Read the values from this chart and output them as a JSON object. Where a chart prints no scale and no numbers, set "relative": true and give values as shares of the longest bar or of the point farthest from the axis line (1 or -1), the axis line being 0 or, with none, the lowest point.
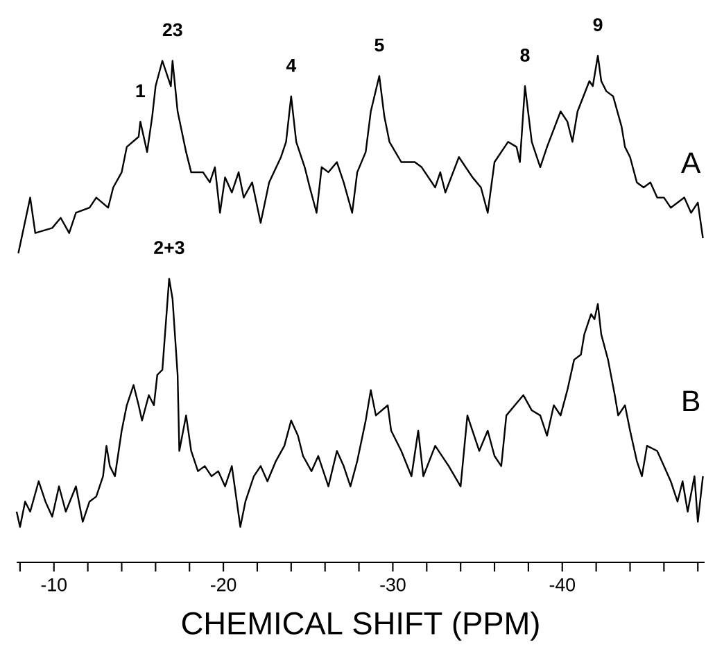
{
  "chart_data": {
    "type": "line",
    "relative": true,
    "xlabel": "CHEMICAL SHIFT   (PPM)",
    "xlim": [
      -7.8,
      -48.4
    ],
    "xticks": [
      {
        "value": -8,
        "label": null
      },
      -10,
      {
        "value": -12,
        "label": null
      },
      {
        "value": -14,
        "label": null
      },
      {
        "value": -16,
        "label": null
      },
      {
        "value": -18,
        "label": null
      },
      -20,
      {
        "value": -22,
        "label": null
      },
      {
        "value": -24,
        "label": null
      },
      {
        "value": -26,
        "label": null
      },
      {
        "value": -28,
        "label": null
      },
      -30,
      {
        "value": -32,
        "label": null
      },
      {
        "value": -34,
        "label": null
      },
      {
        "value": -36,
        "label": null
      },
      {
        "value": -38,
        "label": null
      },
      -40,
      {
        "value": -42,
        "label": null
      },
      {
        "value": -44,
        "label": null
      },
      {
        "value": -46,
        "label": null
      },
      {
        "value": -48,
        "label": null
      }
    ],
    "legend": false,
    "grid": false,
    "marker": "none",
    "line_style": "solid",
    "series": [
      {
        "name": "A",
        "color": "#000000",
        "x": [
          -7.9,
          -8.6,
          -8.9,
          -9.9,
          -10.4,
          -10.9,
          -11.3,
          -12.1,
          -12.5,
          -13.2,
          -13.5,
          -14.0,
          -14.3,
          -15.0,
          -15.1,
          -15.5,
          -15.8,
          -16.0,
          -16.4,
          -16.9,
          -17.0,
          -17.3,
          -17.8,
          -18.1,
          -18.8,
          -19.2,
          -19.5,
          -19.8,
          -20.1,
          -20.5,
          -20.9,
          -21.2,
          -21.7,
          -22.2,
          -22.7,
          -23.4,
          -23.7,
          -24.0,
          -24.3,
          -24.8,
          -25.1,
          -25.5,
          -25.8,
          -26.2,
          -26.7,
          -27.1,
          -27.6,
          -27.9,
          -28.4,
          -28.7,
          -29.2,
          -29.5,
          -29.8,
          -30.5,
          -31.3,
          -31.7,
          -32.5,
          -32.8,
          -33.1,
          -33.9,
          -34.7,
          -35.2,
          -35.6,
          -36.0,
          -36.8,
          -37.3,
          -37.5,
          -37.8,
          -38.2,
          -38.7,
          -39.1,
          -39.9,
          -40.3,
          -40.6,
          -40.9,
          -41.6,
          -41.8,
          -42.1,
          -42.3,
          -42.6,
          -43.0,
          -43.5,
          -43.7,
          -44.0,
          -44.4,
          -44.8,
          -45.2,
          -45.6,
          -46.0,
          -46.4,
          -46.8,
          -47.2,
          -47.6,
          -48.0,
          -48.3
        ],
        "values": [
          0.61,
          0.72,
          0.65,
          0.66,
          0.68,
          0.65,
          0.69,
          0.7,
          0.72,
          0.7,
          0.74,
          0.77,
          0.82,
          0.84,
          0.87,
          0.81,
          0.88,
          0.94,
          0.99,
          0.94,
          0.99,
          0.89,
          0.81,
          0.77,
          0.77,
          0.75,
          0.78,
          0.69,
          0.76,
          0.73,
          0.77,
          0.72,
          0.75,
          0.67,
          0.75,
          0.8,
          0.83,
          0.92,
          0.83,
          0.78,
          0.74,
          0.69,
          0.78,
          0.77,
          0.79,
          0.75,
          0.69,
          0.77,
          0.81,
          0.89,
          0.96,
          0.88,
          0.83,
          0.79,
          0.79,
          0.78,
          0.74,
          0.77,
          0.73,
          0.8,
          0.76,
          0.74,
          0.69,
          0.79,
          0.83,
          0.82,
          0.79,
          0.94,
          0.83,
          0.78,
          0.82,
          0.89,
          0.87,
          0.83,
          0.89,
          0.95,
          0.94,
          1.0,
          0.95,
          0.93,
          0.92,
          0.86,
          0.82,
          0.8,
          0.75,
          0.74,
          0.75,
          0.72,
          0.72,
          0.7,
          0.71,
          0.72,
          0.69,
          0.71,
          0.64
        ]
      },
      {
        "name": "B",
        "color": "#000000",
        "x": [
          -7.8,
          -8.0,
          -8.3,
          -8.6,
          -9.1,
          -9.5,
          -9.9,
          -10.3,
          -10.7,
          -11.3,
          -11.7,
          -12.1,
          -12.5,
          -12.9,
          -13.1,
          -13.3,
          -13.6,
          -14.0,
          -14.3,
          -14.7,
          -15.0,
          -15.2,
          -15.6,
          -15.9,
          -16.1,
          -16.4,
          -16.8,
          -17.0,
          -17.3,
          -17.4,
          -17.8,
          -18.1,
          -18.5,
          -18.9,
          -19.3,
          -19.7,
          -20.1,
          -20.5,
          -21.0,
          -21.3,
          -21.8,
          -22.2,
          -22.6,
          -23.1,
          -23.6,
          -24.0,
          -24.4,
          -24.7,
          -25.2,
          -25.6,
          -26.2,
          -26.7,
          -27.1,
          -27.5,
          -27.9,
          -28.4,
          -28.7,
          -29.0,
          -29.7,
          -29.9,
          -30.5,
          -31.1,
          -31.5,
          -31.8,
          -32.5,
          -33.3,
          -34.0,
          -34.4,
          -34.7,
          -35.1,
          -35.6,
          -36.0,
          -36.4,
          -36.7,
          -37.2,
          -37.7,
          -38.2,
          -38.7,
          -39.1,
          -39.5,
          -39.9,
          -40.3,
          -40.7,
          -41.1,
          -41.3,
          -41.7,
          -41.9,
          -42.1,
          -42.3,
          -42.7,
          -43.1,
          -43.3,
          -43.7,
          -44.0,
          -44.4,
          -44.7,
          -45.0,
          -45.6,
          -46.0,
          -46.4,
          -46.8,
          -47.1,
          -47.4,
          -47.8,
          -48.0,
          -48.3
        ],
        "values": [
          0.1,
          0.07,
          0.12,
          0.1,
          0.16,
          0.12,
          0.09,
          0.15,
          0.1,
          0.15,
          0.08,
          0.12,
          0.13,
          0.17,
          0.23,
          0.19,
          0.17,
          0.26,
          0.31,
          0.35,
          0.31,
          0.28,
          0.33,
          0.31,
          0.37,
          0.38,
          0.56,
          0.52,
          0.37,
          0.22,
          0.29,
          0.22,
          0.18,
          0.19,
          0.17,
          0.18,
          0.15,
          0.19,
          0.07,
          0.12,
          0.17,
          0.19,
          0.16,
          0.2,
          0.23,
          0.28,
          0.25,
          0.21,
          0.18,
          0.21,
          0.15,
          0.22,
          0.19,
          0.15,
          0.2,
          0.28,
          0.34,
          0.29,
          0.31,
          0.26,
          0.22,
          0.17,
          0.26,
          0.17,
          0.23,
          0.19,
          0.15,
          0.29,
          0.26,
          0.22,
          0.26,
          0.21,
          0.19,
          0.29,
          0.31,
          0.33,
          0.3,
          0.29,
          0.25,
          0.31,
          0.29,
          0.34,
          0.4,
          0.41,
          0.45,
          0.49,
          0.48,
          0.51,
          0.45,
          0.4,
          0.33,
          0.29,
          0.31,
          0.26,
          0.2,
          0.17,
          0.23,
          0.22,
          0.19,
          0.16,
          0.12,
          0.16,
          0.1,
          0.17,
          0.08,
          0.17
        ]
      }
    ],
    "annotations": [
      {
        "text": "1",
        "x": -15.1,
        "y": 0.87
      },
      {
        "text": "23",
        "x": -17.0,
        "y": 0.99
      },
      {
        "text": "4",
        "x": -24.0,
        "y": 0.92
      },
      {
        "text": "5",
        "x": -29.2,
        "y": 0.96
      },
      {
        "text": "8",
        "x": -37.8,
        "y": 0.94
      },
      {
        "text": "9",
        "x": -42.1,
        "y": 1.0
      },
      {
        "text": "2+3",
        "x": -16.8,
        "y": 0.56
      }
    ]
  }
}
